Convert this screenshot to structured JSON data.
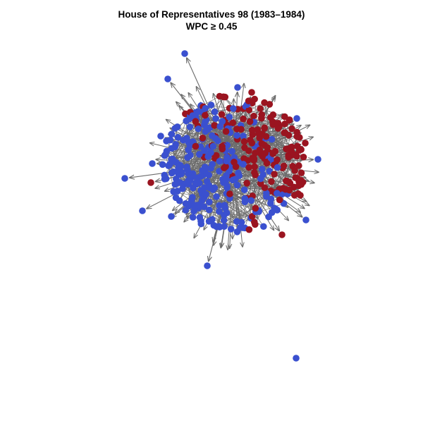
{
  "title": "House of Representatives 98 (1983–1984)",
  "subtitle": "WPC ≥ 0.45",
  "colors": {
    "democrat": "#3a50cf",
    "republican": "#9a1420",
    "edge": "#6b6b6b",
    "background": "#ffffff"
  }
}
